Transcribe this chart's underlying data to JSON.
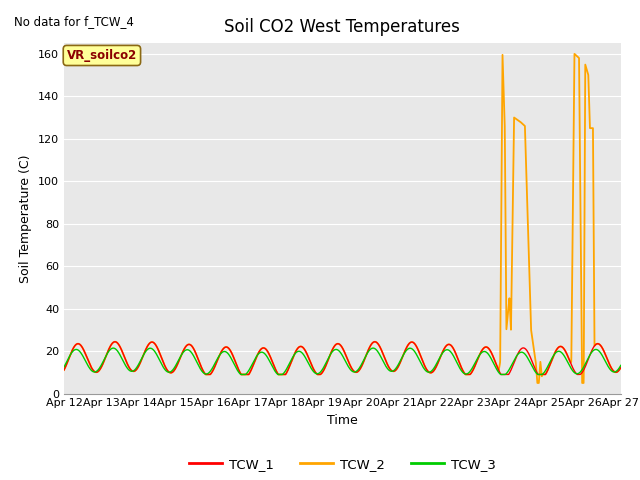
{
  "title": "Soil CO2 West Temperatures",
  "no_data_text": "No data for f_TCW_4",
  "ylabel": "Soil Temperature (C)",
  "xlabel": "Time",
  "annotation_label": "VR_soilco2",
  "ylim": [
    0,
    165
  ],
  "yticks": [
    0,
    20,
    40,
    60,
    80,
    100,
    120,
    140,
    160
  ],
  "xtick_labels": [
    "Apr 12",
    "Apr 13",
    "Apr 14",
    "Apr 15",
    "Apr 16",
    "Apr 17",
    "Apr 18",
    "Apr 19",
    "Apr 20",
    "Apr 21",
    "Apr 22",
    "Apr 23",
    "Apr 24",
    "Apr 25",
    "Apr 26",
    "Apr 27"
  ],
  "colors": {
    "TCW_1": "#FF0000",
    "TCW_2": "#FFA500",
    "TCW_3": "#00CC00",
    "background": "#E8E8E8",
    "annotation_bg": "#FFFF99",
    "annotation_border": "#8B6914"
  },
  "legend_entries": [
    "TCW_1",
    "TCW_2",
    "TCW_3"
  ],
  "title_fontsize": 12,
  "axis_label_fontsize": 9,
  "tick_fontsize": 8
}
